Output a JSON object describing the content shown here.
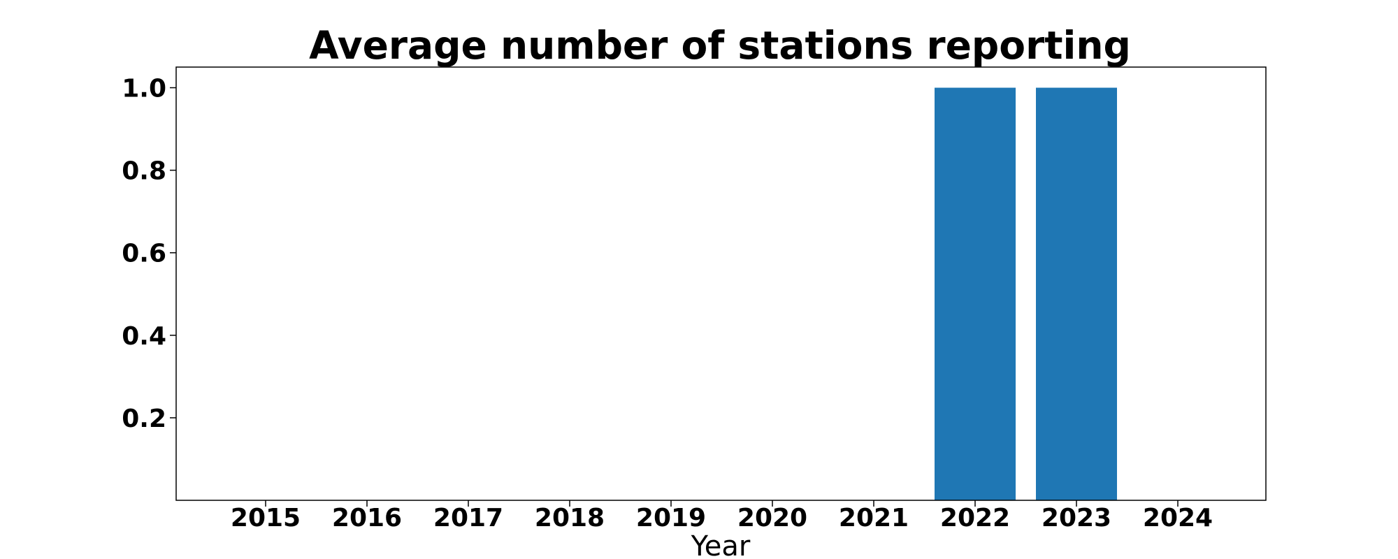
{
  "chart_data": {
    "type": "bar",
    "title": "Average number of stations reporting",
    "xlabel": "Year",
    "ylabel": "",
    "categories": [
      "2015",
      "2016",
      "2017",
      "2018",
      "2019",
      "2020",
      "2021",
      "2022",
      "2023",
      "2024"
    ],
    "values": [
      0,
      0,
      0,
      0,
      0,
      0,
      0,
      1.0,
      1.0,
      0
    ],
    "ylim": [
      0,
      1.05
    ],
    "yticks": [
      "0.2",
      "0.4",
      "0.6",
      "0.8",
      "1.0"
    ],
    "grid": false,
    "legend": "none",
    "colors": {
      "bar": "#1f77b4"
    }
  }
}
